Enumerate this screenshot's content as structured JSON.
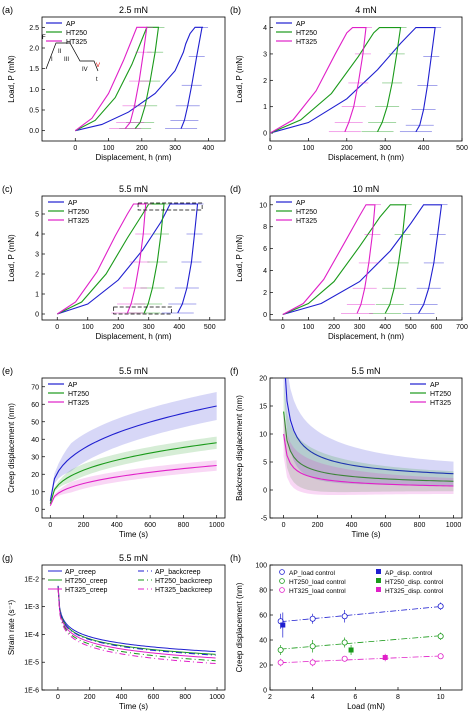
{
  "colors": {
    "AP": "#1f1fd0",
    "HT250": "#1a9a1a",
    "HT325": "#e020c8",
    "axis": "#000000"
  },
  "chart_data": [
    {
      "panel": "(a)",
      "type": "line",
      "title": "2.5 mN",
      "xlabel": "Displacement, h (nm)",
      "ylabel": "Load, P (mN)",
      "xlim": [
        -100,
        450
      ],
      "ylim": [
        -0.25,
        2.75
      ],
      "xticks": [
        0,
        100,
        200,
        300,
        400
      ],
      "yticks": [
        0.0,
        0.5,
        1.0,
        1.5,
        2.0,
        2.5
      ],
      "legend": "top-left",
      "inset_labels": [
        "F",
        "II",
        "I",
        "III",
        "IV",
        "V",
        "t"
      ],
      "series": [
        {
          "name": "AP",
          "loading_x": [
            0,
            80,
            160,
            240,
            300,
            325,
            332,
            345,
            360,
            372,
            384,
            381
          ],
          "loading_y": [
            0,
            0.15,
            0.45,
            0.9,
            1.45,
            1.9,
            2.1,
            2.35,
            2.5,
            2.5,
            2.5,
            2.5
          ],
          "unload_x": [
            381,
            365,
            350,
            338,
            328,
            318
          ],
          "unload_y": [
            2.5,
            1.8,
            1.1,
            0.6,
            0.25,
            0.05
          ]
        },
        {
          "name": "HT250",
          "loading_x": [
            0,
            60,
            120,
            170,
            200,
            215,
            225
          ],
          "loading_y": [
            0,
            0.25,
            0.8,
            1.6,
            2.2,
            2.5,
            2.5
          ],
          "unload_x": [
            250,
            240,
            225,
            210,
            195,
            180
          ],
          "unload_y": [
            2.5,
            1.9,
            1.2,
            0.6,
            0.2,
            0.05
          ]
        },
        {
          "name": "HT325",
          "loading_x": [
            0,
            50,
            100,
            145,
            170,
            185,
            195
          ],
          "loading_y": [
            0,
            0.3,
            0.9,
            1.7,
            2.2,
            2.5,
            2.5
          ],
          "unload_x": [
            215,
            205,
            192,
            178,
            165,
            150
          ],
          "unload_y": [
            2.5,
            1.9,
            1.2,
            0.6,
            0.2,
            0.05
          ]
        }
      ]
    },
    {
      "panel": "(b)",
      "type": "line",
      "title": "4 mN",
      "xlabel": "Displacement, h (nm)",
      "ylabel": "Load, P (mN)",
      "xlim": [
        0,
        500
      ],
      "ylim": [
        -0.3,
        4.4
      ],
      "xticks": [
        0,
        100,
        200,
        300,
        400,
        500
      ],
      "yticks": [
        0,
        1,
        2,
        3,
        4
      ],
      "legend": "top-left",
      "series": [
        {
          "name": "AP",
          "loading_x": [
            0,
            100,
            200,
            280,
            340,
            380,
            400
          ],
          "loading_y": [
            0,
            0.4,
            1.3,
            2.4,
            3.4,
            4.0,
            4.0
          ],
          "unload_x": [
            430,
            420,
            410,
            400,
            390,
            380
          ],
          "unload_y": [
            4.0,
            2.9,
            1.8,
            0.9,
            0.3,
            0.05
          ]
        },
        {
          "name": "HT250",
          "loading_x": [
            0,
            80,
            160,
            230,
            270,
            285,
            300
          ],
          "loading_y": [
            0,
            0.5,
            1.5,
            2.9,
            3.8,
            4.0,
            4.0
          ],
          "unload_x": [
            340,
            330,
            318,
            305,
            292,
            280
          ],
          "unload_y": [
            4.0,
            3.0,
            1.9,
            1.0,
            0.4,
            0.05
          ]
        },
        {
          "name": "HT325",
          "loading_x": [
            0,
            60,
            120,
            170,
            200,
            215,
            225
          ],
          "loading_y": [
            0,
            0.5,
            1.6,
            3.0,
            3.8,
            4.0,
            4.0
          ],
          "unload_x": [
            250,
            242,
            230,
            218,
            205,
            195
          ],
          "unload_y": [
            4.0,
            3.0,
            1.9,
            1.0,
            0.4,
            0.05
          ]
        }
      ]
    },
    {
      "panel": "(c)",
      "type": "line",
      "title": "5.5 mN",
      "xlabel": "Displacement, h (nm)",
      "ylabel": "Load, P (mN)",
      "xlim": [
        -50,
        550
      ],
      "ylim": [
        -0.3,
        5.9
      ],
      "xticks": [
        0,
        100,
        200,
        300,
        400,
        500
      ],
      "yticks": [
        0,
        1,
        2,
        3,
        4,
        5
      ],
      "legend": "top-left",
      "series": [
        {
          "name": "AP",
          "loading_x": [
            0,
            100,
            200,
            280,
            340,
            370,
            390
          ],
          "loading_y": [
            0,
            0.5,
            1.7,
            3.2,
            4.6,
            5.5,
            5.5
          ],
          "unload_x": [
            460,
            450,
            440,
            425,
            410,
            395
          ],
          "unload_y": [
            5.5,
            4.0,
            2.6,
            1.3,
            0.5,
            0.05
          ]
        },
        {
          "name": "HT250",
          "loading_x": [
            0,
            80,
            160,
            230,
            280,
            300,
            315
          ],
          "loading_y": [
            0,
            0.6,
            2.0,
            3.8,
            5.0,
            5.5,
            5.5
          ],
          "unload_x": [
            350,
            340,
            328,
            312,
            298,
            285
          ],
          "unload_y": [
            5.5,
            4.0,
            2.6,
            1.3,
            0.5,
            0.05
          ]
        },
        {
          "name": "HT325",
          "loading_x": [
            0,
            60,
            130,
            190,
            230,
            250,
            262
          ],
          "loading_y": [
            0,
            0.6,
            2.1,
            3.9,
            5.0,
            5.5,
            5.5
          ],
          "unload_x": [
            290,
            282,
            270,
            255,
            242,
            230
          ],
          "unload_y": [
            5.5,
            4.0,
            2.6,
            1.3,
            0.5,
            0.05
          ]
        }
      ]
    },
    {
      "panel": "(d)",
      "type": "line",
      "title": "10 mN",
      "xlabel": "Displacement, h (nm)",
      "ylabel": "Load, P (mN)",
      "xlim": [
        -50,
        700
      ],
      "ylim": [
        -0.5,
        10.8
      ],
      "xticks": [
        0,
        100,
        200,
        300,
        400,
        500,
        600,
        700
      ],
      "yticks": [
        0,
        2,
        4,
        6,
        8,
        10
      ],
      "legend": "top-left",
      "series": [
        {
          "name": "AP",
          "loading_x": [
            0,
            150,
            300,
            420,
            500,
            550,
            580
          ],
          "loading_y": [
            0,
            1.0,
            3.0,
            5.8,
            8.3,
            10.0,
            10.0
          ],
          "unload_x": [
            620,
            605,
            590,
            570,
            550,
            530
          ],
          "unload_y": [
            10.0,
            7.3,
            4.7,
            2.4,
            0.9,
            0.1
          ]
        },
        {
          "name": "HT250",
          "loading_x": [
            0,
            100,
            200,
            300,
            380,
            420,
            440
          ],
          "loading_y": [
            0,
            1.0,
            3.0,
            6.2,
            8.9,
            10.0,
            10.0
          ],
          "unload_x": [
            480,
            468,
            452,
            435,
            418,
            400
          ],
          "unload_y": [
            10.0,
            7.3,
            4.7,
            2.4,
            0.9,
            0.1
          ]
        },
        {
          "name": "HT325",
          "loading_x": [
            0,
            80,
            160,
            240,
            300,
            325,
            338
          ],
          "loading_y": [
            0,
            1.0,
            3.2,
            6.5,
            9.0,
            10.0,
            10.0
          ],
          "unload_x": [
            360,
            350,
            336,
            320,
            305,
            290
          ],
          "unload_y": [
            10.0,
            7.3,
            4.7,
            2.4,
            0.9,
            0.1
          ]
        }
      ]
    },
    {
      "panel": "(e)",
      "type": "area",
      "title": "5.5 mN",
      "xlabel": "Time (s)",
      "ylabel": "Creep displacement (nm)",
      "xlim": [
        -50,
        1050
      ],
      "ylim": [
        -5,
        75
      ],
      "xticks": [
        0,
        200,
        400,
        600,
        800,
        1000
      ],
      "yticks": [
        0,
        10,
        20,
        30,
        40,
        50,
        60,
        70
      ],
      "legend": "top-left",
      "series": [
        {
          "name": "AP",
          "scale": 59,
          "band": 8
        },
        {
          "name": "HT250",
          "scale": 38,
          "band": 3.5
        },
        {
          "name": "HT325",
          "scale": 25,
          "band": 3
        }
      ]
    },
    {
      "panel": "(f)",
      "type": "area",
      "title": "5.5 mN",
      "xlabel": "Time (s)",
      "ylabel": "Backcreep displacement (nm)",
      "xlim": [
        -80,
        1050
      ],
      "ylim": [
        -5,
        20
      ],
      "xticks": [
        0,
        200,
        400,
        600,
        800,
        1000
      ],
      "yticks": [
        -5,
        0,
        5,
        10,
        15,
        20
      ],
      "legend": "top-right",
      "series": [
        {
          "name": "AP",
          "start": 25,
          "end": 0.5,
          "band": 6
        },
        {
          "name": "HT250",
          "start": 14,
          "end": 0.2,
          "band": 5
        },
        {
          "name": "HT325",
          "start": 10,
          "end": -0.3,
          "band": 4
        }
      ]
    },
    {
      "panel": "(g)",
      "type": "line",
      "title": "5.5 mN",
      "log_y": true,
      "xlabel": "Time (s)",
      "ylabel": "Strain rate (s⁻¹)",
      "xlim": [
        -100,
        1050
      ],
      "ylim": [
        -6,
        -1.5
      ],
      "xticks": [
        0,
        200,
        400,
        600,
        800,
        1000
      ],
      "yticks": [
        "1E-6",
        "1E-5",
        "1E-4",
        "1E-3",
        "1E-2"
      ],
      "legend": "top",
      "series": [
        {
          "name": "AP_creep",
          "end_log": -4.62,
          "dash": ""
        },
        {
          "name": "HT250_creep",
          "end_log": -4.72,
          "dash": ""
        },
        {
          "name": "HT325_creep",
          "end_log": -4.85,
          "dash": ""
        },
        {
          "name": "AP_backcreep",
          "end_log": -4.75,
          "dash": "6,3,1,3"
        },
        {
          "name": "HT250_backcreep",
          "end_log": -4.95,
          "dash": "6,3,1,3"
        },
        {
          "name": "HT325_backcreep",
          "end_log": -5.05,
          "dash": "6,3,1,3"
        }
      ]
    },
    {
      "panel": "(h)",
      "type": "scatter",
      "xlabel": "Load (mN)",
      "ylabel": "Creep displacement (nm)",
      "xlim": [
        2,
        11
      ],
      "ylim": [
        0,
        100
      ],
      "xticks": [
        2,
        4,
        6,
        8,
        10
      ],
      "yticks": [
        0,
        20,
        40,
        60,
        80,
        100
      ],
      "legend": "top",
      "series": [
        {
          "name": "AP_load control",
          "x": [
            2.5,
            4,
            5.5,
            10
          ],
          "y": [
            55,
            57,
            59,
            67
          ],
          "err": [
            6,
            4,
            5,
            3
          ]
        },
        {
          "name": "HT250_load control",
          "x": [
            2.5,
            4,
            5.5,
            10
          ],
          "y": [
            32,
            35,
            38,
            43
          ],
          "err": [
            4,
            5,
            4,
            3
          ]
        },
        {
          "name": "HT325_load control",
          "x": [
            2.5,
            4,
            5.5,
            10
          ],
          "y": [
            22,
            22,
            25,
            27
          ],
          "err": [
            3,
            3,
            2,
            2
          ]
        },
        {
          "name": "AP_disp. control",
          "x": [
            2.6
          ],
          "y": [
            52
          ],
          "err": [
            10
          ]
        },
        {
          "name": "HT250_disp. control",
          "x": [
            5.8
          ],
          "y": [
            32
          ],
          "err": [
            4
          ]
        },
        {
          "name": "HT325_disp. control",
          "x": [
            7.4
          ],
          "y": [
            26
          ],
          "err": [
            3
          ]
        }
      ]
    }
  ]
}
